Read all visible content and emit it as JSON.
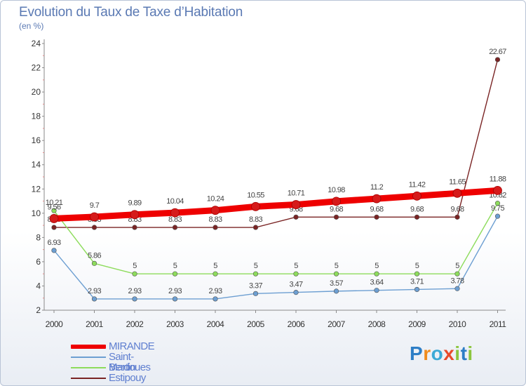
{
  "header": {
    "title": "Evolution du Taux de Taxe d’Habitation",
    "subtitle": "(en %)"
  },
  "logo": {
    "letters": [
      "P",
      "r",
      "o",
      "x",
      "i",
      "t",
      "i"
    ],
    "colors": [
      "#2d7ec6",
      "#f08c1e",
      "#3ca9d6",
      "#e94b2b",
      "#8cc63f",
      "#2d7ec6",
      "#8cc63f"
    ]
  },
  "chart_data": {
    "type": "line",
    "title": "Evolution du Taux de Taxe d’Habitation",
    "ylabel": "(en %)",
    "xlabel": "",
    "categories": [
      "2000",
      "2001",
      "2002",
      "2003",
      "2004",
      "2005",
      "2006",
      "2007",
      "2008",
      "2009",
      "2010",
      "2011"
    ],
    "ylim": [
      2,
      24
    ],
    "yticks": [
      2,
      4,
      6,
      8,
      10,
      12,
      14,
      16,
      18,
      20,
      22,
      24
    ],
    "grid": false,
    "legend_position": "bottom-left",
    "series": [
      {
        "name": "Estipouy",
        "color": "#7a2424",
        "values": [
          8.83,
          8.83,
          8.83,
          8.83,
          8.83,
          8.83,
          9.68,
          9.68,
          9.68,
          9.68,
          9.68,
          22.67
        ],
        "labels": [
          "8.83",
          "8.83",
          "8.83",
          "8.83",
          "8.83",
          "8.83",
          "9.68",
          "9.68",
          "9.68",
          "9.68",
          "9.68",
          "22.67"
        ]
      },
      {
        "name": "Berdoues",
        "color": "#8ddc5c",
        "values": [
          10.21,
          5.86,
          5,
          5,
          5,
          5,
          5,
          5,
          5,
          5,
          5,
          10.82
        ],
        "labels": [
          "10.21",
          "5.86",
          "5",
          "5",
          "5",
          "5",
          "5",
          "5",
          "5",
          "5",
          "5",
          "10.82"
        ]
      },
      {
        "name": "Saint-Martin",
        "color": "#6d9fd2",
        "values": [
          6.93,
          2.93,
          2.93,
          2.93,
          2.93,
          3.37,
          3.47,
          3.57,
          3.64,
          3.71,
          3.78,
          9.75
        ],
        "labels": [
          "6.93",
          "2.93",
          "2.93",
          "2.93",
          "2.93",
          "3.37",
          "3.47",
          "3.57",
          "3.64",
          "3.71",
          "3.78",
          "9.75"
        ]
      },
      {
        "name": "MIRANDE",
        "color": "#ee0000",
        "values": [
          9.56,
          9.7,
          9.89,
          10.04,
          10.24,
          10.55,
          10.71,
          10.98,
          11.2,
          11.42,
          11.65,
          11.88
        ],
        "labels": [
          "9.56",
          "9.7",
          "9.89",
          "10.04",
          "10.24",
          "10.55",
          "10.71",
          "10.98",
          "11.2",
          "11.42",
          "11.65",
          "11.88"
        ]
      }
    ],
    "legend": [
      "MIRANDE",
      "Saint-Martin",
      "Berdoues",
      "Estipouy"
    ]
  }
}
